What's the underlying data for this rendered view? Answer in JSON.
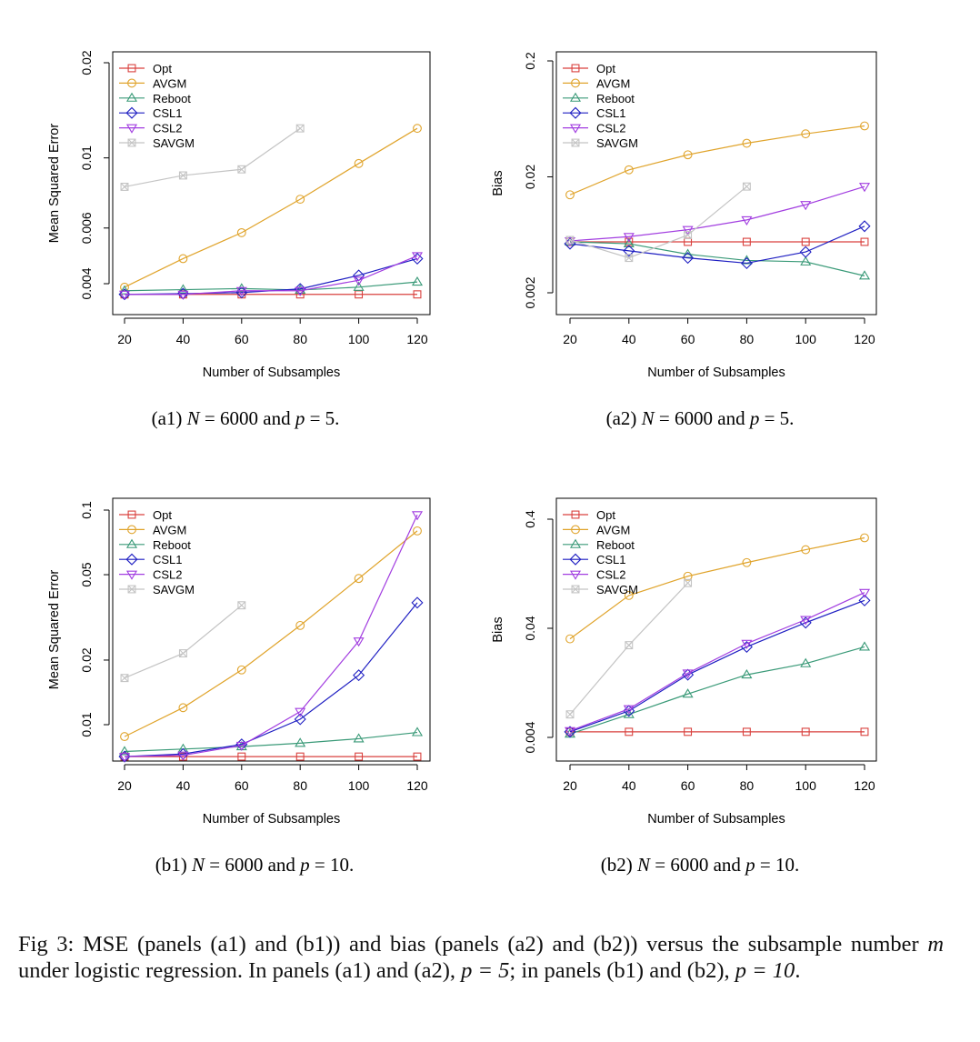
{
  "colors": {
    "Opt": "#d9413e",
    "AVGM": "#e0a42c",
    "Reboot": "#3a9a78",
    "CSL1": "#1f1fc2",
    "CSL2": "#a23ee0",
    "SAVGM": "#c4c4c4"
  },
  "markers": {
    "Opt": "square",
    "AVGM": "circle",
    "Reboot": "triangle-up",
    "CSL1": "diamond",
    "CSL2": "triangle-down",
    "SAVGM": "square-x"
  },
  "chart_data": [
    {
      "id": "a1",
      "type": "line",
      "y_scale": "log",
      "xlabel": "Number of Subsamples",
      "ylabel": "Mean Squared Error",
      "x": [
        20,
        40,
        60,
        80,
        100,
        120
      ],
      "xlim": [
        20,
        120
      ],
      "ylim": [
        0.0035,
        0.02
      ],
      "yticks": [
        0.004,
        0.006,
        0.01,
        0.02
      ],
      "ytick_labels": [
        "0.004",
        "0.006",
        "0.01",
        "0.02"
      ],
      "legend_position": "top-left",
      "series": [
        {
          "name": "Opt",
          "values": [
            0.0037,
            0.0037,
            0.0037,
            0.0037,
            0.0037,
            0.0037
          ]
        },
        {
          "name": "AVGM",
          "values": [
            0.0039,
            0.0048,
            0.0058,
            0.0074,
            0.0096,
            0.0124
          ]
        },
        {
          "name": "Reboot",
          "values": [
            0.0038,
            0.00383,
            0.00386,
            0.00382,
            0.0039,
            0.00405
          ]
        },
        {
          "name": "CSL1",
          "values": [
            0.0037,
            0.00372,
            0.00375,
            0.00385,
            0.00425,
            0.0048
          ]
        },
        {
          "name": "CSL2",
          "values": [
            0.0037,
            0.0037,
            0.0038,
            0.0038,
            0.0041,
            0.0049
          ]
        },
        {
          "name": "SAVGM",
          "values": [
            0.0081,
            0.0088,
            0.0092,
            0.0124,
            null,
            null
          ]
        }
      ],
      "caption": {
        "prefix": "(a1)",
        "N": "6000",
        "p": "5"
      }
    },
    {
      "id": "a2",
      "type": "line",
      "y_scale": "log",
      "xlabel": "Number of Subsamples",
      "ylabel": "Bias",
      "x": [
        20,
        40,
        60,
        80,
        100,
        120
      ],
      "xlim": [
        20,
        120
      ],
      "ylim": [
        0.0018,
        0.2
      ],
      "yticks": [
        0.002,
        0.02,
        0.2
      ],
      "ytick_labels": [
        "0.002",
        "0.02",
        "0.2"
      ],
      "legend_position": "top-left",
      "series": [
        {
          "name": "Opt",
          "values": [
            0.0055,
            0.0055,
            0.0055,
            0.0055,
            0.0055,
            0.0055
          ]
        },
        {
          "name": "AVGM",
          "values": [
            0.014,
            0.023,
            0.031,
            0.039,
            0.047,
            0.055
          ]
        },
        {
          "name": "Reboot",
          "values": [
            0.0055,
            0.0053,
            0.0043,
            0.0038,
            0.0037,
            0.0028
          ]
        },
        {
          "name": "CSL1",
          "values": [
            0.0053,
            0.0046,
            0.004,
            0.0036,
            0.0045,
            0.0075
          ]
        },
        {
          "name": "CSL2",
          "values": [
            0.0056,
            0.0061,
            0.007,
            0.0085,
            0.0115,
            0.0165
          ]
        },
        {
          "name": "SAVGM",
          "values": [
            0.0057,
            0.004,
            0.0063,
            0.0165,
            null,
            null
          ]
        }
      ],
      "caption": {
        "prefix": "(a2)",
        "N": "6000",
        "p": "5"
      }
    },
    {
      "id": "b1",
      "type": "line",
      "y_scale": "log",
      "xlabel": "Number of Subsamples",
      "ylabel": "Mean Squared Error",
      "x": [
        20,
        40,
        60,
        80,
        100,
        120
      ],
      "xlim": [
        20,
        120
      ],
      "ylim": [
        0.0065,
        0.1
      ],
      "yticks": [
        0.01,
        0.02,
        0.05,
        0.1
      ],
      "ytick_labels": [
        "0.01",
        "0.02",
        "0.05",
        "0.1"
      ],
      "legend_position": "top-left",
      "series": [
        {
          "name": "Opt",
          "values": [
            0.0071,
            0.0071,
            0.0071,
            0.0071,
            0.0071,
            0.0071
          ]
        },
        {
          "name": "AVGM",
          "values": [
            0.0088,
            0.012,
            0.018,
            0.029,
            0.048,
            0.08
          ]
        },
        {
          "name": "Reboot",
          "values": [
            0.0075,
            0.0077,
            0.0079,
            0.0082,
            0.0086,
            0.0092
          ]
        },
        {
          "name": "CSL1",
          "values": [
            0.0071,
            0.0073,
            0.0081,
            0.0106,
            0.017,
            0.037
          ]
        },
        {
          "name": "CSL2",
          "values": [
            0.0071,
            0.0072,
            0.008,
            0.0115,
            0.0245,
            0.095
          ]
        },
        {
          "name": "SAVGM",
          "values": [
            0.0165,
            0.0215,
            0.036,
            null,
            null,
            null
          ]
        }
      ],
      "caption": {
        "prefix": "(b1)",
        "N": "6000",
        "p": "10"
      }
    },
    {
      "id": "b2",
      "type": "line",
      "y_scale": "log",
      "xlabel": "Number of Subsamples",
      "ylabel": "Bias",
      "x": [
        20,
        40,
        60,
        80,
        100,
        120
      ],
      "xlim": [
        20,
        120
      ],
      "ylim": [
        0.0035,
        0.5
      ],
      "yticks": [
        0.004,
        0.04,
        0.4
      ],
      "ytick_labels": [
        "0.004",
        "0.04",
        "0.4"
      ],
      "legend_position": "top-left",
      "series": [
        {
          "name": "Opt",
          "values": [
            0.0045,
            0.0045,
            0.0045,
            0.0045,
            0.0045,
            0.0045
          ]
        },
        {
          "name": "AVGM",
          "values": [
            0.032,
            0.08,
            0.12,
            0.16,
            0.21,
            0.27
          ]
        },
        {
          "name": "Reboot",
          "values": [
            0.0043,
            0.0065,
            0.01,
            0.015,
            0.019,
            0.027
          ]
        },
        {
          "name": "CSL1",
          "values": [
            0.0045,
            0.007,
            0.015,
            0.027,
            0.045,
            0.072
          ]
        },
        {
          "name": "CSL2",
          "values": [
            0.0046,
            0.0073,
            0.0155,
            0.029,
            0.048,
            0.085
          ]
        },
        {
          "name": "SAVGM",
          "values": [
            0.0065,
            0.028,
            0.104,
            null,
            null,
            null
          ]
        }
      ],
      "caption": {
        "prefix": "(b2)",
        "N": "6000",
        "p": "10"
      }
    }
  ],
  "figure_caption": {
    "label": "Fig 3:",
    "part1": "MSE (panels (a1) and (b1)) and bias (panels (a2) and (b2)) versus the subsample number",
    "var_m": "m",
    "part2": "under logistic regression. In panels (a1) and (a2),",
    "p_eq_5": "p = 5",
    "part3": "; in panels (b1) and (b2),",
    "p_eq_10": "p = 10",
    "part4": "."
  }
}
